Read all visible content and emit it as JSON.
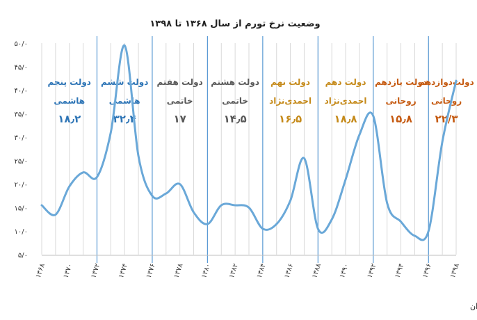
{
  "chart_data": {
    "type": "line",
    "title": "وضعیت نرخ تورم از سال ۱۳۶۸ تا ۱۳۹۸",
    "source": "منبع: مرکز آمار ایران",
    "ylim": [
      5,
      50
    ],
    "yticks": [
      "۵/۰",
      "۱۰/۰",
      "۱۵/۰",
      "۲۰/۰",
      "۲۵/۰",
      "۳۰/۰",
      "۳۵/۰",
      "۴۰/۰",
      "۴۵/۰",
      "۵۰/۰"
    ],
    "ytick_values": [
      5,
      10,
      15,
      20,
      25,
      30,
      35,
      40,
      45,
      50
    ],
    "xlim": [
      1368,
      1398
    ],
    "xticks": [
      "۱۳۶۸",
      "۱۳۷۰",
      "۱۳۷۲",
      "۱۳۷۴",
      "۱۳۷۶",
      "۱۳۷۸",
      "۱۳۸۰",
      "۱۳۸۲",
      "۱۳۸۴",
      "۱۳۸۶",
      "۱۳۸۸",
      "۱۳۹۰",
      "۱۳۹۲",
      "۱۳۹۴",
      "۱۳۹۶",
      "۱۳۹۸"
    ],
    "xtick_values": [
      1368,
      1370,
      1372,
      1374,
      1376,
      1378,
      1380,
      1382,
      1384,
      1386,
      1388,
      1390,
      1392,
      1394,
      1396,
      1398
    ],
    "grid": "vertical",
    "series": [
      {
        "x": [
          1368,
          1369,
          1370,
          1371,
          1372,
          1373,
          1374,
          1375,
          1376,
          1377,
          1378,
          1379,
          1380,
          1381,
          1382,
          1383,
          1384,
          1385,
          1386,
          1387,
          1388,
          1389,
          1390,
          1391,
          1392,
          1393,
          1394,
          1395,
          1396,
          1397,
          1398
        ],
        "y": [
          15.5,
          13.5,
          19.5,
          22.5,
          21.5,
          31.0,
          49.5,
          26.0,
          17.5,
          18.0,
          20.0,
          14.0,
          11.5,
          15.5,
          15.5,
          15.0,
          10.5,
          11.5,
          16.5,
          25.5,
          10.5,
          12.5,
          21.0,
          30.5,
          34.5,
          16.0,
          12.0,
          9.0,
          10.0,
          29.0,
          42.0
        ],
        "color": "#6aa8d8"
      }
    ],
    "government_boundaries": [
      1372,
      1376,
      1380,
      1384,
      1388,
      1392,
      1396
    ],
    "governments": [
      {
        "name": "دولت پنجم",
        "president": "هاشمی",
        "avg": "۱۸٫۲",
        "color": "#2e75b6",
        "year": 1370
      },
      {
        "name": "دولت ششم",
        "president": "هاشمی",
        "avg": "۳۲٫۴",
        "color": "#2e75b6",
        "year": 1374
      },
      {
        "name": "دولت هفتم",
        "president": "خاتمی",
        "avg": "۱۷",
        "color": "#595959",
        "year": 1378
      },
      {
        "name": "دولت هشتم",
        "president": "خاتمی",
        "avg": "۱۴٫۵",
        "color": "#595959",
        "year": 1382
      },
      {
        "name": "دولت نهم",
        "president": "احمدی‌نژاد",
        "avg": "۱۶٫۵",
        "color": "#c58a1a",
        "year": 1386
      },
      {
        "name": "دولت دهم",
        "president": "احمدی‌نژاد",
        "avg": "۱۸٫۸",
        "color": "#c58a1a",
        "year": 1390
      },
      {
        "name": "دولت یازدهم",
        "president": "روحانی",
        "avg": "۱۵٫۸",
        "color": "#c55a11",
        "year": 1394
      },
      {
        "name": "دولت‌دوازدهم",
        "president": "روحانی",
        "avg": "۲۲/۳",
        "color": "#c55a11",
        "year": 1397.3
      }
    ]
  }
}
